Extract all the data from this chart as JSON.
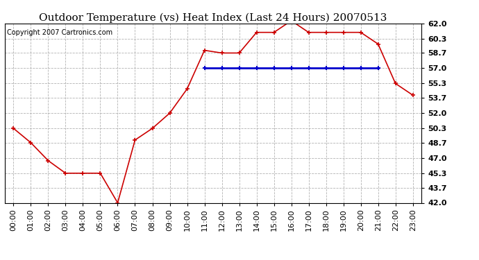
{
  "title": "Outdoor Temperature (vs) Heat Index (Last 24 Hours) 20070513",
  "copyright": "Copyright 2007 Cartronics.com",
  "x_labels": [
    "00:00",
    "01:00",
    "02:00",
    "03:00",
    "04:00",
    "05:00",
    "06:00",
    "07:00",
    "08:00",
    "09:00",
    "10:00",
    "11:00",
    "12:00",
    "13:00",
    "14:00",
    "15:00",
    "16:00",
    "17:00",
    "18:00",
    "19:00",
    "20:00",
    "21:00",
    "22:00",
    "23:00"
  ],
  "temp_values": [
    50.3,
    48.7,
    46.7,
    45.3,
    45.3,
    45.3,
    42.0,
    49.0,
    50.3,
    52.0,
    54.7,
    59.0,
    58.7,
    58.7,
    61.0,
    61.0,
    62.3,
    61.0,
    61.0,
    61.0,
    61.0,
    59.7,
    55.3,
    54.0
  ],
  "heat_values": [
    null,
    null,
    null,
    null,
    null,
    null,
    null,
    null,
    null,
    null,
    null,
    57.0,
    57.0,
    57.0,
    57.0,
    57.0,
    57.0,
    57.0,
    57.0,
    57.0,
    57.0,
    57.0,
    null,
    null
  ],
  "ylim": [
    42.0,
    62.0
  ],
  "yticks": [
    42.0,
    43.7,
    45.3,
    47.0,
    48.7,
    50.3,
    52.0,
    53.7,
    55.3,
    57.0,
    58.7,
    60.3,
    62.0
  ],
  "temp_color": "#cc0000",
  "heat_color": "#0000cc",
  "bg_color": "#ffffff",
  "plot_bg_color": "#ffffff",
  "grid_color": "#aaaaaa",
  "title_fontsize": 11,
  "copyright_fontsize": 7,
  "tick_fontsize": 8,
  "figwidth": 6.9,
  "figheight": 3.75,
  "dpi": 100
}
